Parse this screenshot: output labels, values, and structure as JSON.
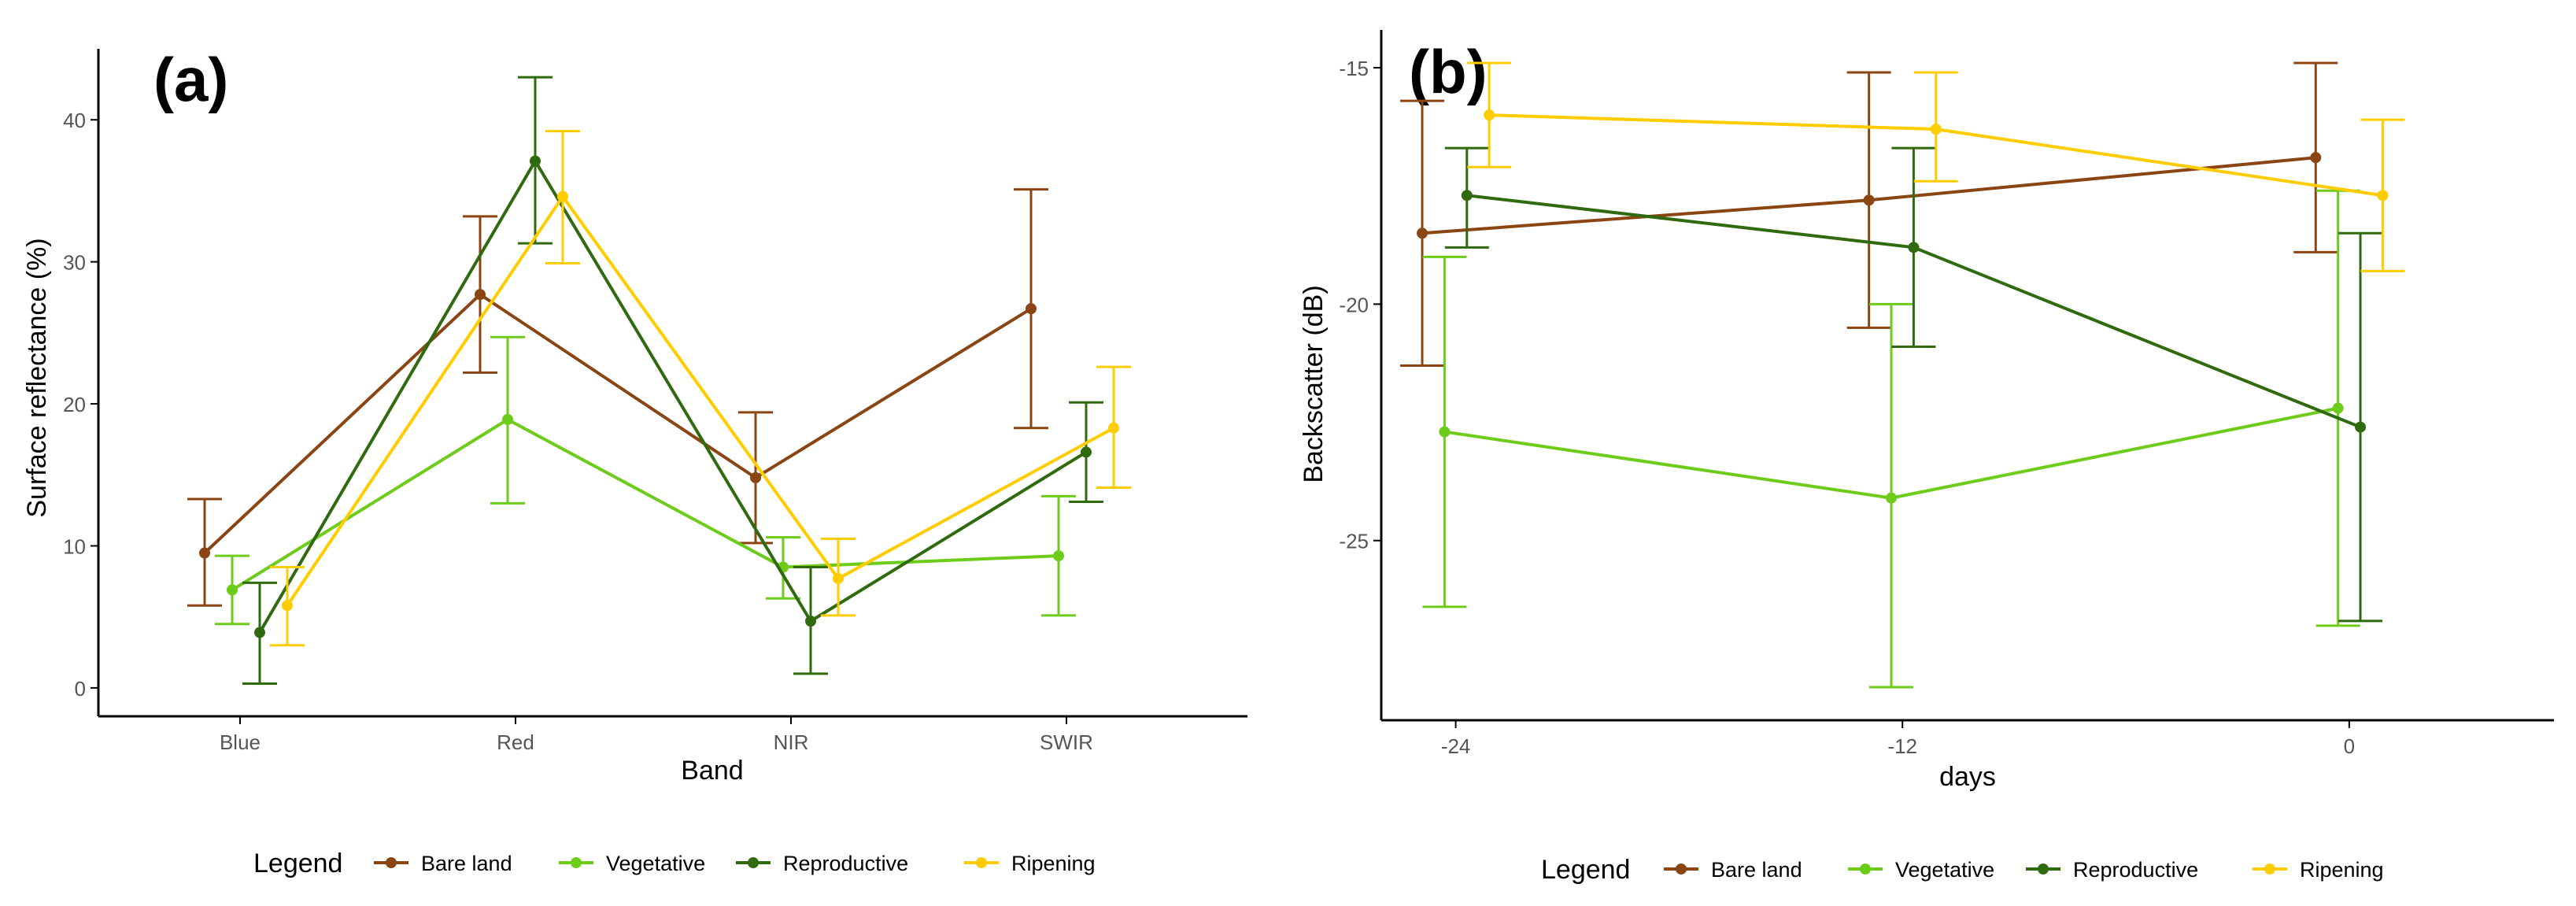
{
  "colors": {
    "series": [
      "#8B4513",
      "#6DCC1A",
      "#2F6B0E",
      "#FFCC00"
    ],
    "axis": "#000000",
    "tick_text": "#555555"
  },
  "chart_data": [
    {
      "type": "line",
      "panel_label": "(a)",
      "xlabel": "Band",
      "ylabel": "Surface reflectance (%)",
      "categories": [
        "Blue",
        "Red",
        "NIR",
        "SWIR"
      ],
      "ylim": [
        -2,
        45
      ],
      "yticks": [
        0,
        10,
        20,
        30,
        40
      ],
      "legend": {
        "title": "Legend",
        "position": "bottom"
      },
      "series": [
        {
          "name": "Bare land",
          "values": [
            9.5,
            27.7,
            14.8,
            26.7
          ],
          "err_low": [
            5.8,
            22.2,
            10.2,
            18.3
          ],
          "err_high": [
            13.3,
            33.2,
            19.4,
            35.1
          ]
        },
        {
          "name": "Vegetative",
          "values": [
            6.9,
            18.9,
            8.5,
            9.3
          ],
          "err_low": [
            4.5,
            13.0,
            6.3,
            5.1
          ],
          "err_high": [
            9.3,
            24.7,
            10.6,
            13.5
          ]
        },
        {
          "name": "Reproductive",
          "values": [
            3.9,
            37.1,
            4.7,
            16.6
          ],
          "err_low": [
            0.3,
            31.3,
            1.0,
            13.1
          ],
          "err_high": [
            7.4,
            43.0,
            8.5,
            20.1
          ]
        },
        {
          "name": "Ripening",
          "values": [
            5.8,
            34.6,
            7.7,
            18.3
          ],
          "err_low": [
            3.0,
            29.9,
            5.1,
            14.1
          ],
          "err_high": [
            8.5,
            39.2,
            10.5,
            22.6
          ]
        }
      ]
    },
    {
      "type": "line",
      "panel_label": "(b)",
      "xlabel": "days",
      "ylabel": "Backscatter (dB)",
      "x_points": [
        -24,
        -12,
        0
      ],
      "xlim": [
        -26,
        5.5
      ],
      "xticks": [
        -24,
        -12,
        0
      ],
      "ylim": [
        -28.8,
        -14.2
      ],
      "yticks": [
        -15,
        -20,
        -25
      ],
      "legend": {
        "title": "Legend",
        "position": "bottom"
      },
      "series": [
        {
          "name": "Bare land",
          "values": [
            -18.5,
            -17.8,
            -16.9
          ],
          "err_low": [
            -21.3,
            -20.5,
            -18.9
          ],
          "err_high": [
            -15.7,
            -15.1,
            -14.9
          ]
        },
        {
          "name": "Vegetative",
          "values": [
            -22.7,
            -24.1,
            -22.2
          ],
          "err_low": [
            -26.4,
            -28.1,
            -26.8
          ],
          "err_high": [
            -19.0,
            -20.0,
            -17.6
          ]
        },
        {
          "name": "Reproductive",
          "values": [
            -17.7,
            -18.8,
            -22.6
          ],
          "err_low": [
            -18.8,
            -20.9,
            -26.7
          ],
          "err_high": [
            -16.7,
            -16.7,
            -18.5
          ]
        },
        {
          "name": "Ripening",
          "values": [
            -16.0,
            -16.3,
            -17.7
          ],
          "err_low": [
            -17.1,
            -17.4,
            -19.3
          ],
          "err_high": [
            -14.9,
            -15.1,
            -16.1
          ]
        }
      ]
    }
  ]
}
